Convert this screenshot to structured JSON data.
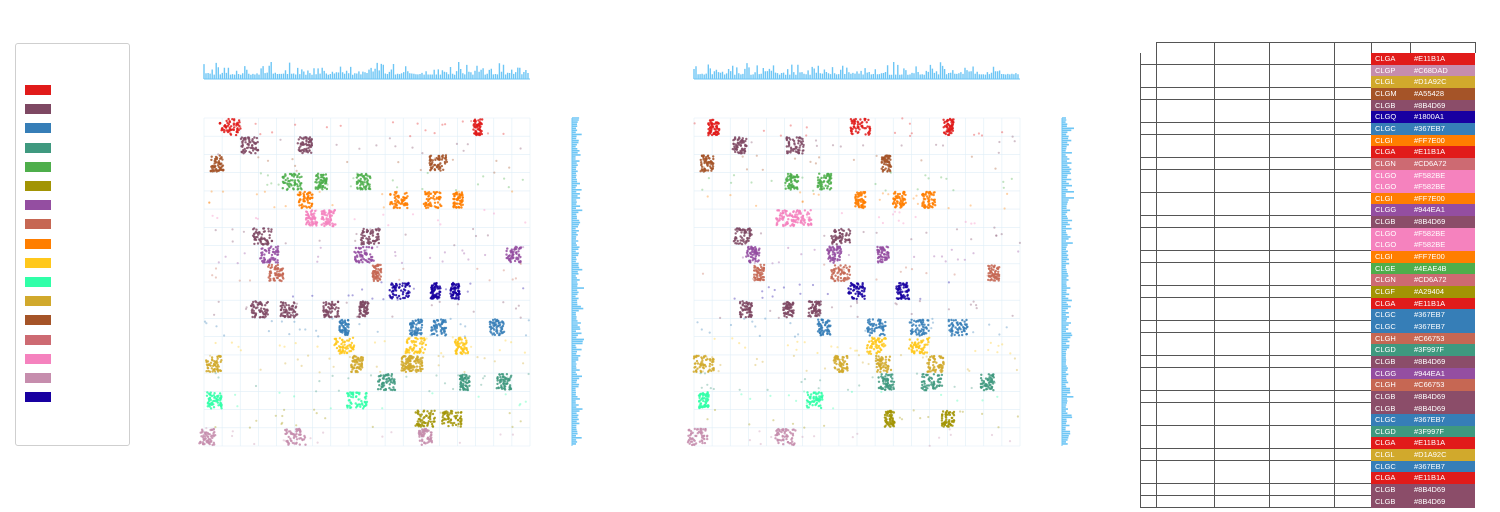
{
  "legend": {
    "colors": [
      "#E11B1A",
      "#7E4863",
      "#367EB7",
      "#3F997F",
      "#4EAE4B",
      "#A29404",
      "#944EA1",
      "#C66753",
      "#FF7E00",
      "#FFC81C",
      "#30FFA8",
      "#D1A92C",
      "#A55428",
      "#CD6A72",
      "#F582BE",
      "#C68DAD",
      "#1800A1"
    ]
  },
  "chart_data": [
    {
      "type": "scatter",
      "title": "",
      "xlabel": "",
      "ylabel": "",
      "grid": true,
      "marginal_histograms": [
        "top",
        "right"
      ],
      "bands": [
        {
          "color": "#E11B1A",
          "dense_x": [
            0.08,
            0.84
          ],
          "sparse": 0.25
        },
        {
          "color": "#7E4863",
          "dense_x": [
            0.14,
            0.31
          ],
          "sparse": 0.2
        },
        {
          "color": "#A55428",
          "dense_x": [
            0.04,
            0.72
          ],
          "sparse": 0.2
        },
        {
          "color": "#4EAE4B",
          "dense_x": [
            0.27,
            0.36,
            0.49
          ],
          "sparse": 0.3
        },
        {
          "color": "#FF7E00",
          "dense_x": [
            0.31,
            0.6,
            0.7,
            0.78
          ],
          "sparse": 0.25
        },
        {
          "color": "#F582BE",
          "dense_x": [
            0.33,
            0.38
          ],
          "sparse": 0.2
        },
        {
          "color": "#7E4863",
          "dense_x": [
            0.18,
            0.51
          ],
          "sparse": 0.2
        },
        {
          "color": "#944EA1",
          "dense_x": [
            0.2,
            0.49,
            0.95
          ],
          "sparse": 0.3
        },
        {
          "color": "#C66753",
          "dense_x": [
            0.22,
            0.53
          ],
          "sparse": 0.2
        },
        {
          "color": "#1800A1",
          "dense_x": [
            0.6,
            0.71,
            0.77
          ],
          "sparse": 0.2
        },
        {
          "color": "#7E4863",
          "dense_x": [
            0.17,
            0.26,
            0.39,
            0.49
          ],
          "sparse": 0.25
        },
        {
          "color": "#367EB7",
          "dense_x": [
            0.43,
            0.65,
            0.72,
            0.9
          ],
          "sparse": 0.35
        },
        {
          "color": "#FFC81C",
          "dense_x": [
            0.43,
            0.65,
            0.79
          ],
          "sparse": 0.3
        },
        {
          "color": "#D1A92C",
          "dense_x": [
            0.03,
            0.47,
            0.62,
            0.65
          ],
          "sparse": 0.3
        },
        {
          "color": "#3F997F",
          "dense_x": [
            0.56,
            0.8,
            0.92
          ],
          "sparse": 0.3
        },
        {
          "color": "#30FFA8",
          "dense_x": [
            0.03,
            0.47
          ],
          "sparse": 0.2
        },
        {
          "color": "#A29404",
          "dense_x": [
            0.68,
            0.76
          ],
          "sparse": 0.25
        },
        {
          "color": "#C68DAD",
          "dense_x": [
            0.01,
            0.28,
            0.68
          ],
          "sparse": 0.2
        }
      ]
    },
    {
      "type": "scatter",
      "title": "",
      "xlabel": "",
      "ylabel": "",
      "grid": true,
      "marginal_histograms": [
        "top",
        "right"
      ],
      "bands": [
        {
          "color": "#E11B1A",
          "dense_x": [
            0.06,
            0.51,
            0.78
          ],
          "sparse": 0.25
        },
        {
          "color": "#7E4863",
          "dense_x": [
            0.14,
            0.31
          ],
          "sparse": 0.2
        },
        {
          "color": "#A55428",
          "dense_x": [
            0.04,
            0.59
          ],
          "sparse": 0.2
        },
        {
          "color": "#4EAE4B",
          "dense_x": [
            0.3,
            0.4
          ],
          "sparse": 0.3
        },
        {
          "color": "#FF7E00",
          "dense_x": [
            0.51,
            0.63,
            0.72
          ],
          "sparse": 0.25
        },
        {
          "color": "#F582BE",
          "dense_x": [
            0.28,
            0.33
          ],
          "sparse": 0.2
        },
        {
          "color": "#7E4863",
          "dense_x": [
            0.15,
            0.45
          ],
          "sparse": 0.2
        },
        {
          "color": "#944EA1",
          "dense_x": [
            0.18,
            0.43,
            0.58
          ],
          "sparse": 0.3
        },
        {
          "color": "#C66753",
          "dense_x": [
            0.2,
            0.45,
            0.92
          ],
          "sparse": 0.2
        },
        {
          "color": "#1800A1",
          "dense_x": [
            0.5,
            0.64
          ],
          "sparse": 0.2
        },
        {
          "color": "#7E4863",
          "dense_x": [
            0.16,
            0.29,
            0.37
          ],
          "sparse": 0.25
        },
        {
          "color": "#367EB7",
          "dense_x": [
            0.4,
            0.56,
            0.69,
            0.81
          ],
          "sparse": 0.35
        },
        {
          "color": "#FFC81C",
          "dense_x": [
            0.56,
            0.69
          ],
          "sparse": 0.3
        },
        {
          "color": "#D1A92C",
          "dense_x": [
            0.03,
            0.45,
            0.58,
            0.74
          ],
          "sparse": 0.3
        },
        {
          "color": "#3F997F",
          "dense_x": [
            0.59,
            0.73,
            0.9
          ],
          "sparse": 0.3
        },
        {
          "color": "#30FFA8",
          "dense_x": [
            0.03,
            0.37
          ],
          "sparse": 0.2
        },
        {
          "color": "#A29404",
          "dense_x": [
            0.6,
            0.78
          ],
          "sparse": 0.25
        },
        {
          "color": "#C68DAD",
          "dense_x": [
            0.01,
            0.28
          ],
          "sparse": 0.2
        }
      ]
    }
  ],
  "table": {
    "rows": [
      {
        "code": "CLGA",
        "hex": "#E11B1A"
      },
      {
        "code": "CLGP",
        "hex": "#C68DAD"
      },
      {
        "code": "CLGL",
        "hex": "#D1A92C"
      },
      {
        "code": "CLGM",
        "hex": "#A55428"
      },
      {
        "code": "CLGB",
        "hex": "#8B4D69"
      },
      {
        "code": "CLGQ",
        "hex": "#1800A1"
      },
      {
        "code": "CLGC",
        "hex": "#367EB7"
      },
      {
        "code": "CLGI",
        "hex": "#FF7E00"
      },
      {
        "code": "CLGA",
        "hex": "#E11B1A"
      },
      {
        "code": "CLGN",
        "hex": "#CD6A72"
      },
      {
        "code": "CLGO",
        "hex": "#F582BE"
      },
      {
        "code": "CLGO",
        "hex": "#F582BE"
      },
      {
        "code": "CLGI",
        "hex": "#FF7E00"
      },
      {
        "code": "CLGG",
        "hex": "#944EA1"
      },
      {
        "code": "CLGB",
        "hex": "#8B4D69"
      },
      {
        "code": "CLGO",
        "hex": "#F582BE"
      },
      {
        "code": "CLGO",
        "hex": "#F582BE"
      },
      {
        "code": "CLGI",
        "hex": "#FF7E00"
      },
      {
        "code": "CLGE",
        "hex": "#4EAE4B"
      },
      {
        "code": "CLGN",
        "hex": "#CD6A72"
      },
      {
        "code": "CLGF",
        "hex": "#A29404"
      },
      {
        "code": "CLGA",
        "hex": "#E11B1A"
      },
      {
        "code": "CLGC",
        "hex": "#367EB7"
      },
      {
        "code": "CLGC",
        "hex": "#367EB7"
      },
      {
        "code": "CLGH",
        "hex": "#C66753"
      },
      {
        "code": "CLGD",
        "hex": "#3F997F"
      },
      {
        "code": "CLGB",
        "hex": "#8B4D69"
      },
      {
        "code": "CLGG",
        "hex": "#944EA1"
      },
      {
        "code": "CLGH",
        "hex": "#C66753"
      },
      {
        "code": "CLGB",
        "hex": "#8B4D69"
      },
      {
        "code": "CLGB",
        "hex": "#8B4D69"
      },
      {
        "code": "CLGC",
        "hex": "#367EB7"
      },
      {
        "code": "CLGD",
        "hex": "#3F997F"
      },
      {
        "code": "CLGA",
        "hex": "#E11B1A"
      },
      {
        "code": "CLGL",
        "hex": "#D1A92C"
      },
      {
        "code": "CLGC",
        "hex": "#367EB7"
      },
      {
        "code": "CLGA",
        "hex": "#E11B1A"
      },
      {
        "code": "CLGB",
        "hex": "#8B4D69"
      },
      {
        "code": "CLGB",
        "hex": "#8B4D69"
      }
    ]
  },
  "histogram_color": "#6EC6F5"
}
